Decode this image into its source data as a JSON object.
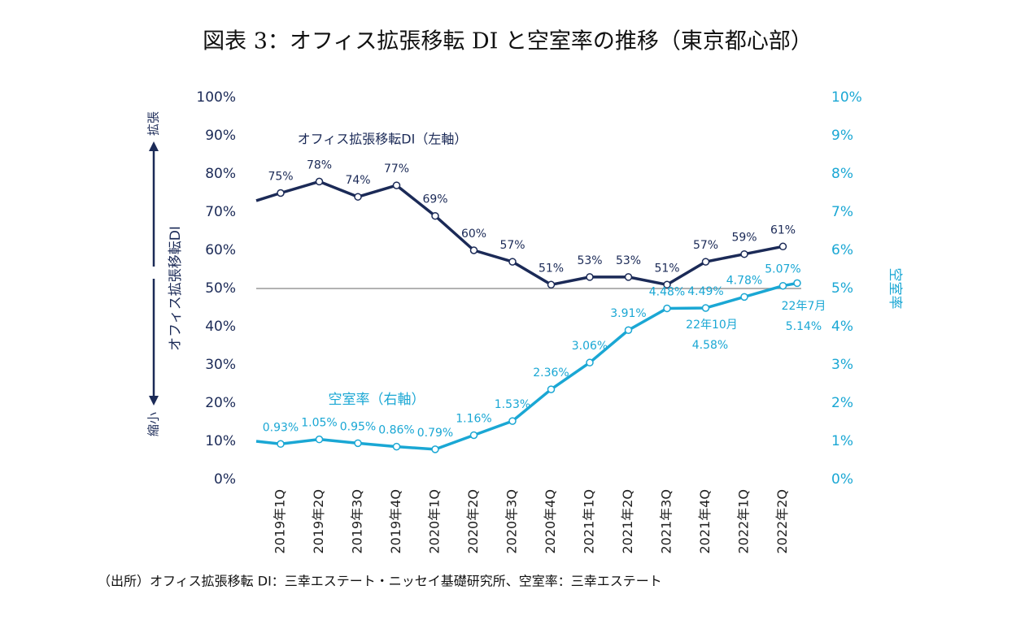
{
  "chart_data": {
    "type": "line",
    "title": "図表 3：オフィス拡張移転 DI と空室率の推移（東京都心部）",
    "source": "（出所）オフィス拡張移転 DI：三幸エステート・ニッセイ基礎研究所、空室率：三幸エステート",
    "y_label": "オフィス拡張移転DI",
    "y_top_label": "拡張",
    "y_bottom_label": "縮小",
    "y2_label": "空室率",
    "categories": [
      null,
      "2019年1Q",
      "2019年2Q",
      "2019年3Q",
      "2019年4Q",
      "2020年1Q",
      "2020年2Q",
      "2020年3Q",
      "2020年4Q",
      "2021年1Q",
      "2021年2Q",
      "2021年3Q",
      "2021年4Q",
      "2022年1Q",
      "2022年2Q",
      null
    ],
    "series": [
      {
        "name": "オフィス拡張移転DI（左軸）",
        "color": "#1b2a57",
        "axis": "y",
        "values": [
          73,
          75,
          78,
          74,
          77,
          69,
          60,
          57,
          51,
          53,
          53,
          51,
          57,
          59,
          61,
          null
        ],
        "value_labels": [
          null,
          "75%",
          "78%",
          "74%",
          "77%",
          "69%",
          "60%",
          "57%",
          "51%",
          "53%",
          "53%",
          "51%",
          "57%",
          "59%",
          "61%",
          null
        ]
      },
      {
        "name": "空室率（右軸）",
        "color": "#1aa7d4",
        "axis": "y2",
        "values": [
          1.0,
          0.93,
          1.05,
          0.95,
          0.86,
          0.79,
          1.16,
          1.53,
          2.36,
          3.06,
          3.91,
          4.48,
          4.49,
          4.78,
          5.07,
          5.14
        ],
        "value_labels": [
          null,
          "0.93%",
          "1.05%",
          "0.95%",
          "0.86%",
          "0.79%",
          "1.16%",
          "1.53%",
          "2.36%",
          "3.06%",
          "3.91%",
          "4.48%",
          "4.49%",
          "4.78%",
          "5.07%",
          "5.14%"
        ]
      }
    ],
    "annotations": [
      "22年7月",
      "22年10月",
      "4.58%"
    ],
    "reference_line": 50,
    "ylim": [
      0,
      100
    ],
    "yticks": [
      {
        "value": 0,
        "label": "0%"
      },
      {
        "value": 10,
        "label": "10%"
      },
      {
        "value": 20,
        "label": "20%"
      },
      {
        "value": 30,
        "label": "30%"
      },
      {
        "value": 40,
        "label": "40%"
      },
      {
        "value": 50,
        "label": "50%"
      },
      {
        "value": 60,
        "label": "60%"
      },
      {
        "value": 70,
        "label": "70%"
      },
      {
        "value": 80,
        "label": "80%"
      },
      {
        "value": 90,
        "label": "90%"
      },
      {
        "value": 100,
        "label": "100%"
      }
    ],
    "y2lim": [
      0,
      10
    ],
    "y2ticks": [
      {
        "value": 0,
        "label": "0%"
      },
      {
        "value": 1,
        "label": "1%"
      },
      {
        "value": 2,
        "label": "2%"
      },
      {
        "value": 3,
        "label": "3%"
      },
      {
        "value": 4,
        "label": "4%"
      },
      {
        "value": 5,
        "label": "5%"
      },
      {
        "value": 6,
        "label": "6%"
      },
      {
        "value": 7,
        "label": "7%"
      },
      {
        "value": 8,
        "label": "8%"
      },
      {
        "value": 9,
        "label": "9%"
      },
      {
        "value": 10,
        "label": "10%"
      }
    ]
  }
}
